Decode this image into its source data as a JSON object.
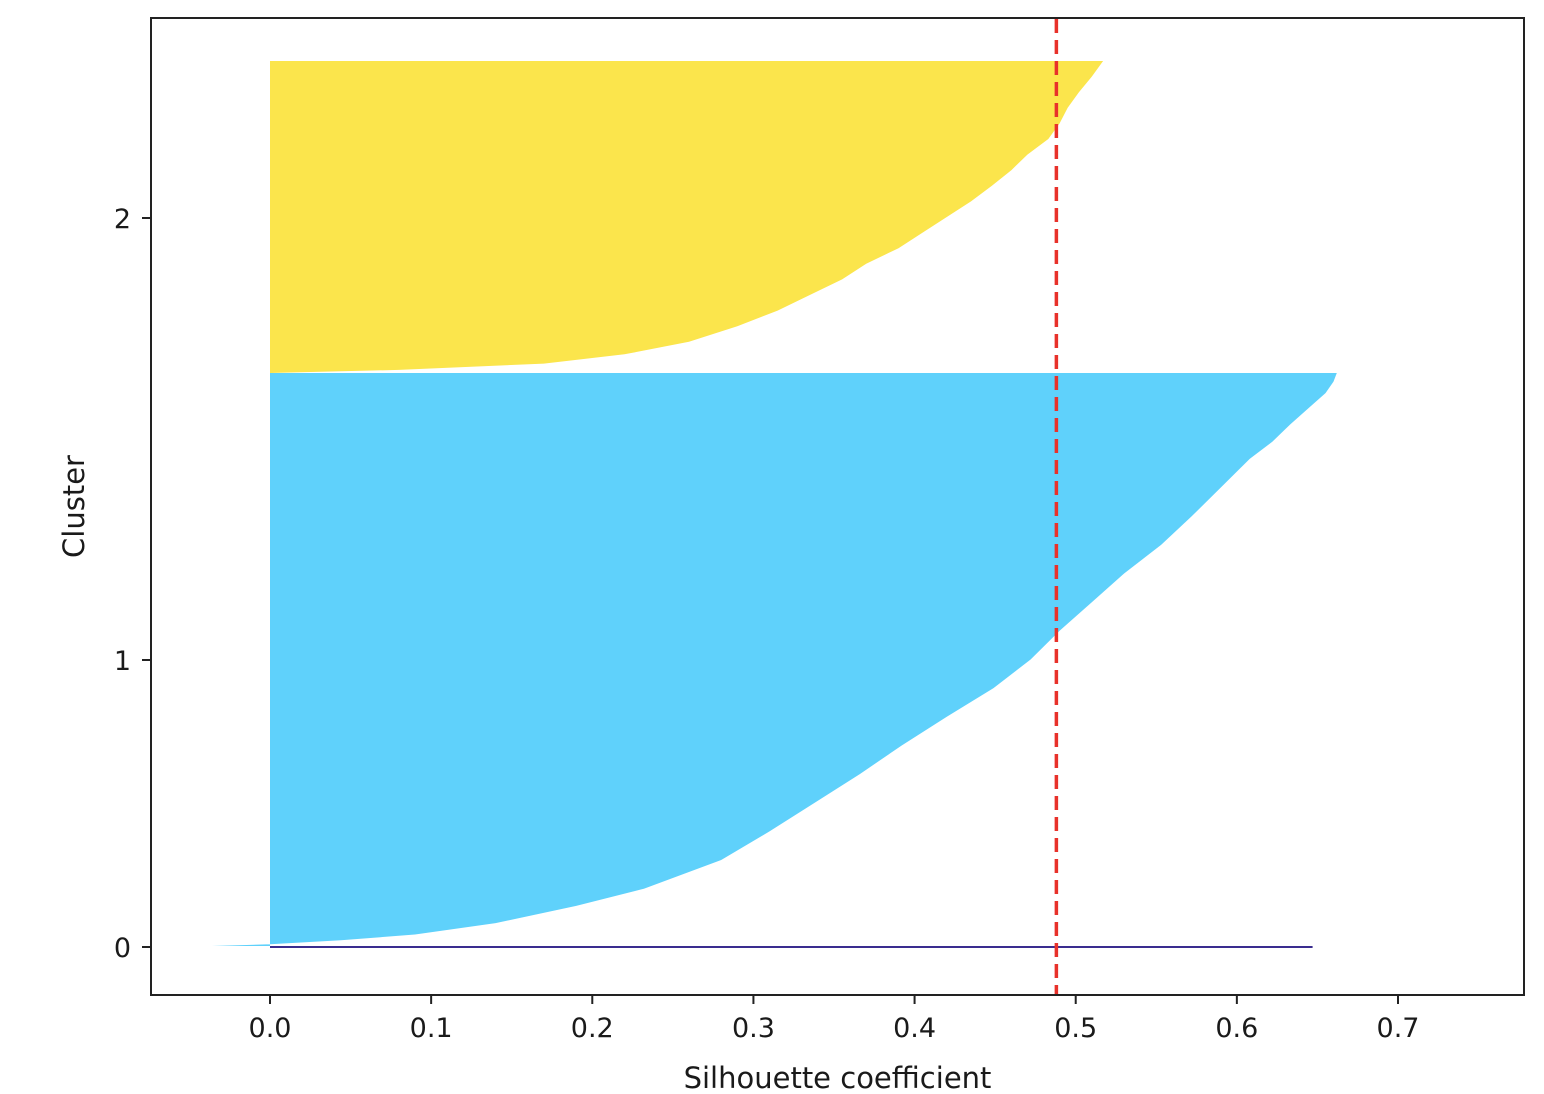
{
  "chart_data": {
    "type": "bar",
    "subtype": "silhouette",
    "xlabel": "Silhouette coefficient",
    "ylabel": "Cluster",
    "xlim": [
      -0.073,
      0.78
    ],
    "x_ticks": [
      "0.0",
      "0.1",
      "0.2",
      "0.3",
      "0.4",
      "0.5",
      "0.6",
      "0.7"
    ],
    "y_ticks": [
      {
        "label": "0",
        "value": 0
      },
      {
        "label": "1",
        "value": 1
      },
      {
        "label": "2",
        "value": 2
      }
    ],
    "average_silhouette": 0.488,
    "grid": false,
    "clusters": [
      {
        "label": "0",
        "color": "#3a2d8f",
        "profile": [
          [
            0,
            0.647
          ],
          [
            1,
            0.647
          ]
        ]
      },
      {
        "label": "1",
        "color": "#5fd1fb",
        "profile": [
          [
            0.0,
            -0.036
          ],
          [
            0.003,
            0.0
          ],
          [
            0.01,
            0.044
          ],
          [
            0.02,
            0.09
          ],
          [
            0.04,
            0.14
          ],
          [
            0.07,
            0.19
          ],
          [
            0.1,
            0.232
          ],
          [
            0.15,
            0.28
          ],
          [
            0.2,
            0.31
          ],
          [
            0.25,
            0.338
          ],
          [
            0.3,
            0.366
          ],
          [
            0.35,
            0.392
          ],
          [
            0.4,
            0.42
          ],
          [
            0.45,
            0.449
          ],
          [
            0.5,
            0.472
          ],
          [
            0.55,
            0.49
          ],
          [
            0.6,
            0.51
          ],
          [
            0.65,
            0.53
          ],
          [
            0.7,
            0.553
          ],
          [
            0.75,
            0.572
          ],
          [
            0.8,
            0.59
          ],
          [
            0.85,
            0.608
          ],
          [
            0.88,
            0.622
          ],
          [
            0.91,
            0.633
          ],
          [
            0.94,
            0.645
          ],
          [
            0.965,
            0.655
          ],
          [
            0.985,
            0.66
          ],
          [
            1.0,
            0.662
          ]
        ]
      },
      {
        "label": "2",
        "color": "#fbe54c",
        "profile": [
          [
            0.0,
            0.0
          ],
          [
            0.01,
            0.08
          ],
          [
            0.03,
            0.17
          ],
          [
            0.06,
            0.22
          ],
          [
            0.1,
            0.26
          ],
          [
            0.15,
            0.29
          ],
          [
            0.2,
            0.315
          ],
          [
            0.25,
            0.335
          ],
          [
            0.3,
            0.355
          ],
          [
            0.35,
            0.37
          ],
          [
            0.4,
            0.39
          ],
          [
            0.45,
            0.405
          ],
          [
            0.5,
            0.42
          ],
          [
            0.55,
            0.435
          ],
          [
            0.6,
            0.448
          ],
          [
            0.65,
            0.46
          ],
          [
            0.7,
            0.47
          ],
          [
            0.75,
            0.483
          ],
          [
            0.8,
            0.49
          ],
          [
            0.85,
            0.495
          ],
          [
            0.9,
            0.502
          ],
          [
            0.95,
            0.51
          ],
          [
            1.0,
            0.517
          ]
        ]
      }
    ]
  }
}
